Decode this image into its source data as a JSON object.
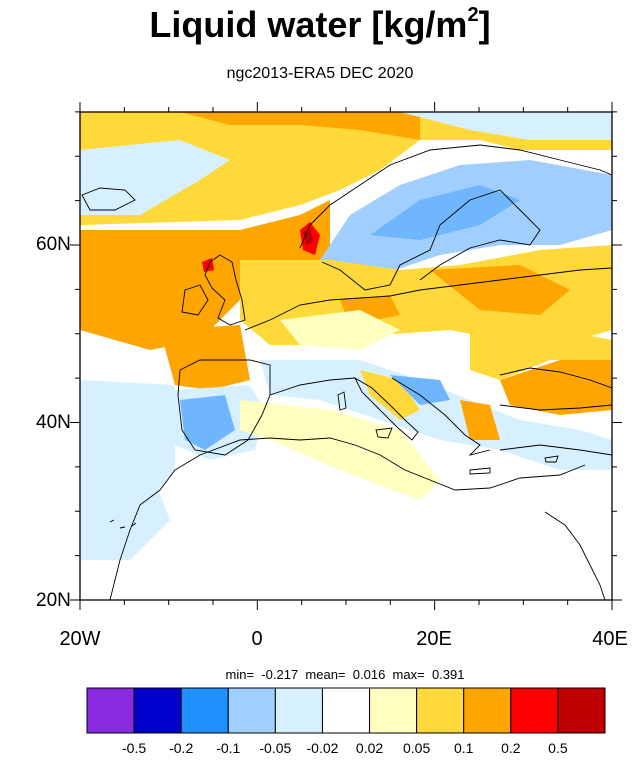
{
  "title": {
    "main": "Liquid water  [kg/m",
    "sup": "2",
    "close": "]"
  },
  "subtitle": "ngc2013-ERA5 DEC 2020",
  "axes": {
    "lat_labels": [
      "60N",
      "40N",
      "20N"
    ],
    "lon_labels": [
      "20W",
      "0",
      "20E",
      "40E"
    ]
  },
  "stats": {
    "min_label": "min=",
    "min": "-0.217",
    "mean_label": "mean=",
    "mean": "0.016",
    "max_label": "max=",
    "max": "0.391"
  },
  "colorbar": {
    "colors": [
      "#8a2be2",
      "#0000cd",
      "#1e90ff",
      "#a0cfff",
      "#d6f0ff",
      "#ffffff",
      "#ffffc0",
      "#ffd93a",
      "#ffa500",
      "#ff0000",
      "#c00000"
    ],
    "labels": [
      "-0.5",
      "-0.2",
      "-0.1",
      "-0.05",
      "-0.02",
      "0.02",
      "0.05",
      "0.1",
      "0.2",
      "0.5"
    ]
  },
  "map": {
    "lon_range": [
      -20,
      40
    ],
    "lat_range": [
      20,
      75
    ],
    "field_colors": {
      "orange": "#ffa500",
      "yellow": "#ffd93a",
      "paleyellow": "#ffffc0",
      "lightblue": "#d6f0ff",
      "midblue": "#a0cfff",
      "blue": "#6fb6ff",
      "red": "#ff0000",
      "darkred": "#c00000"
    }
  }
}
